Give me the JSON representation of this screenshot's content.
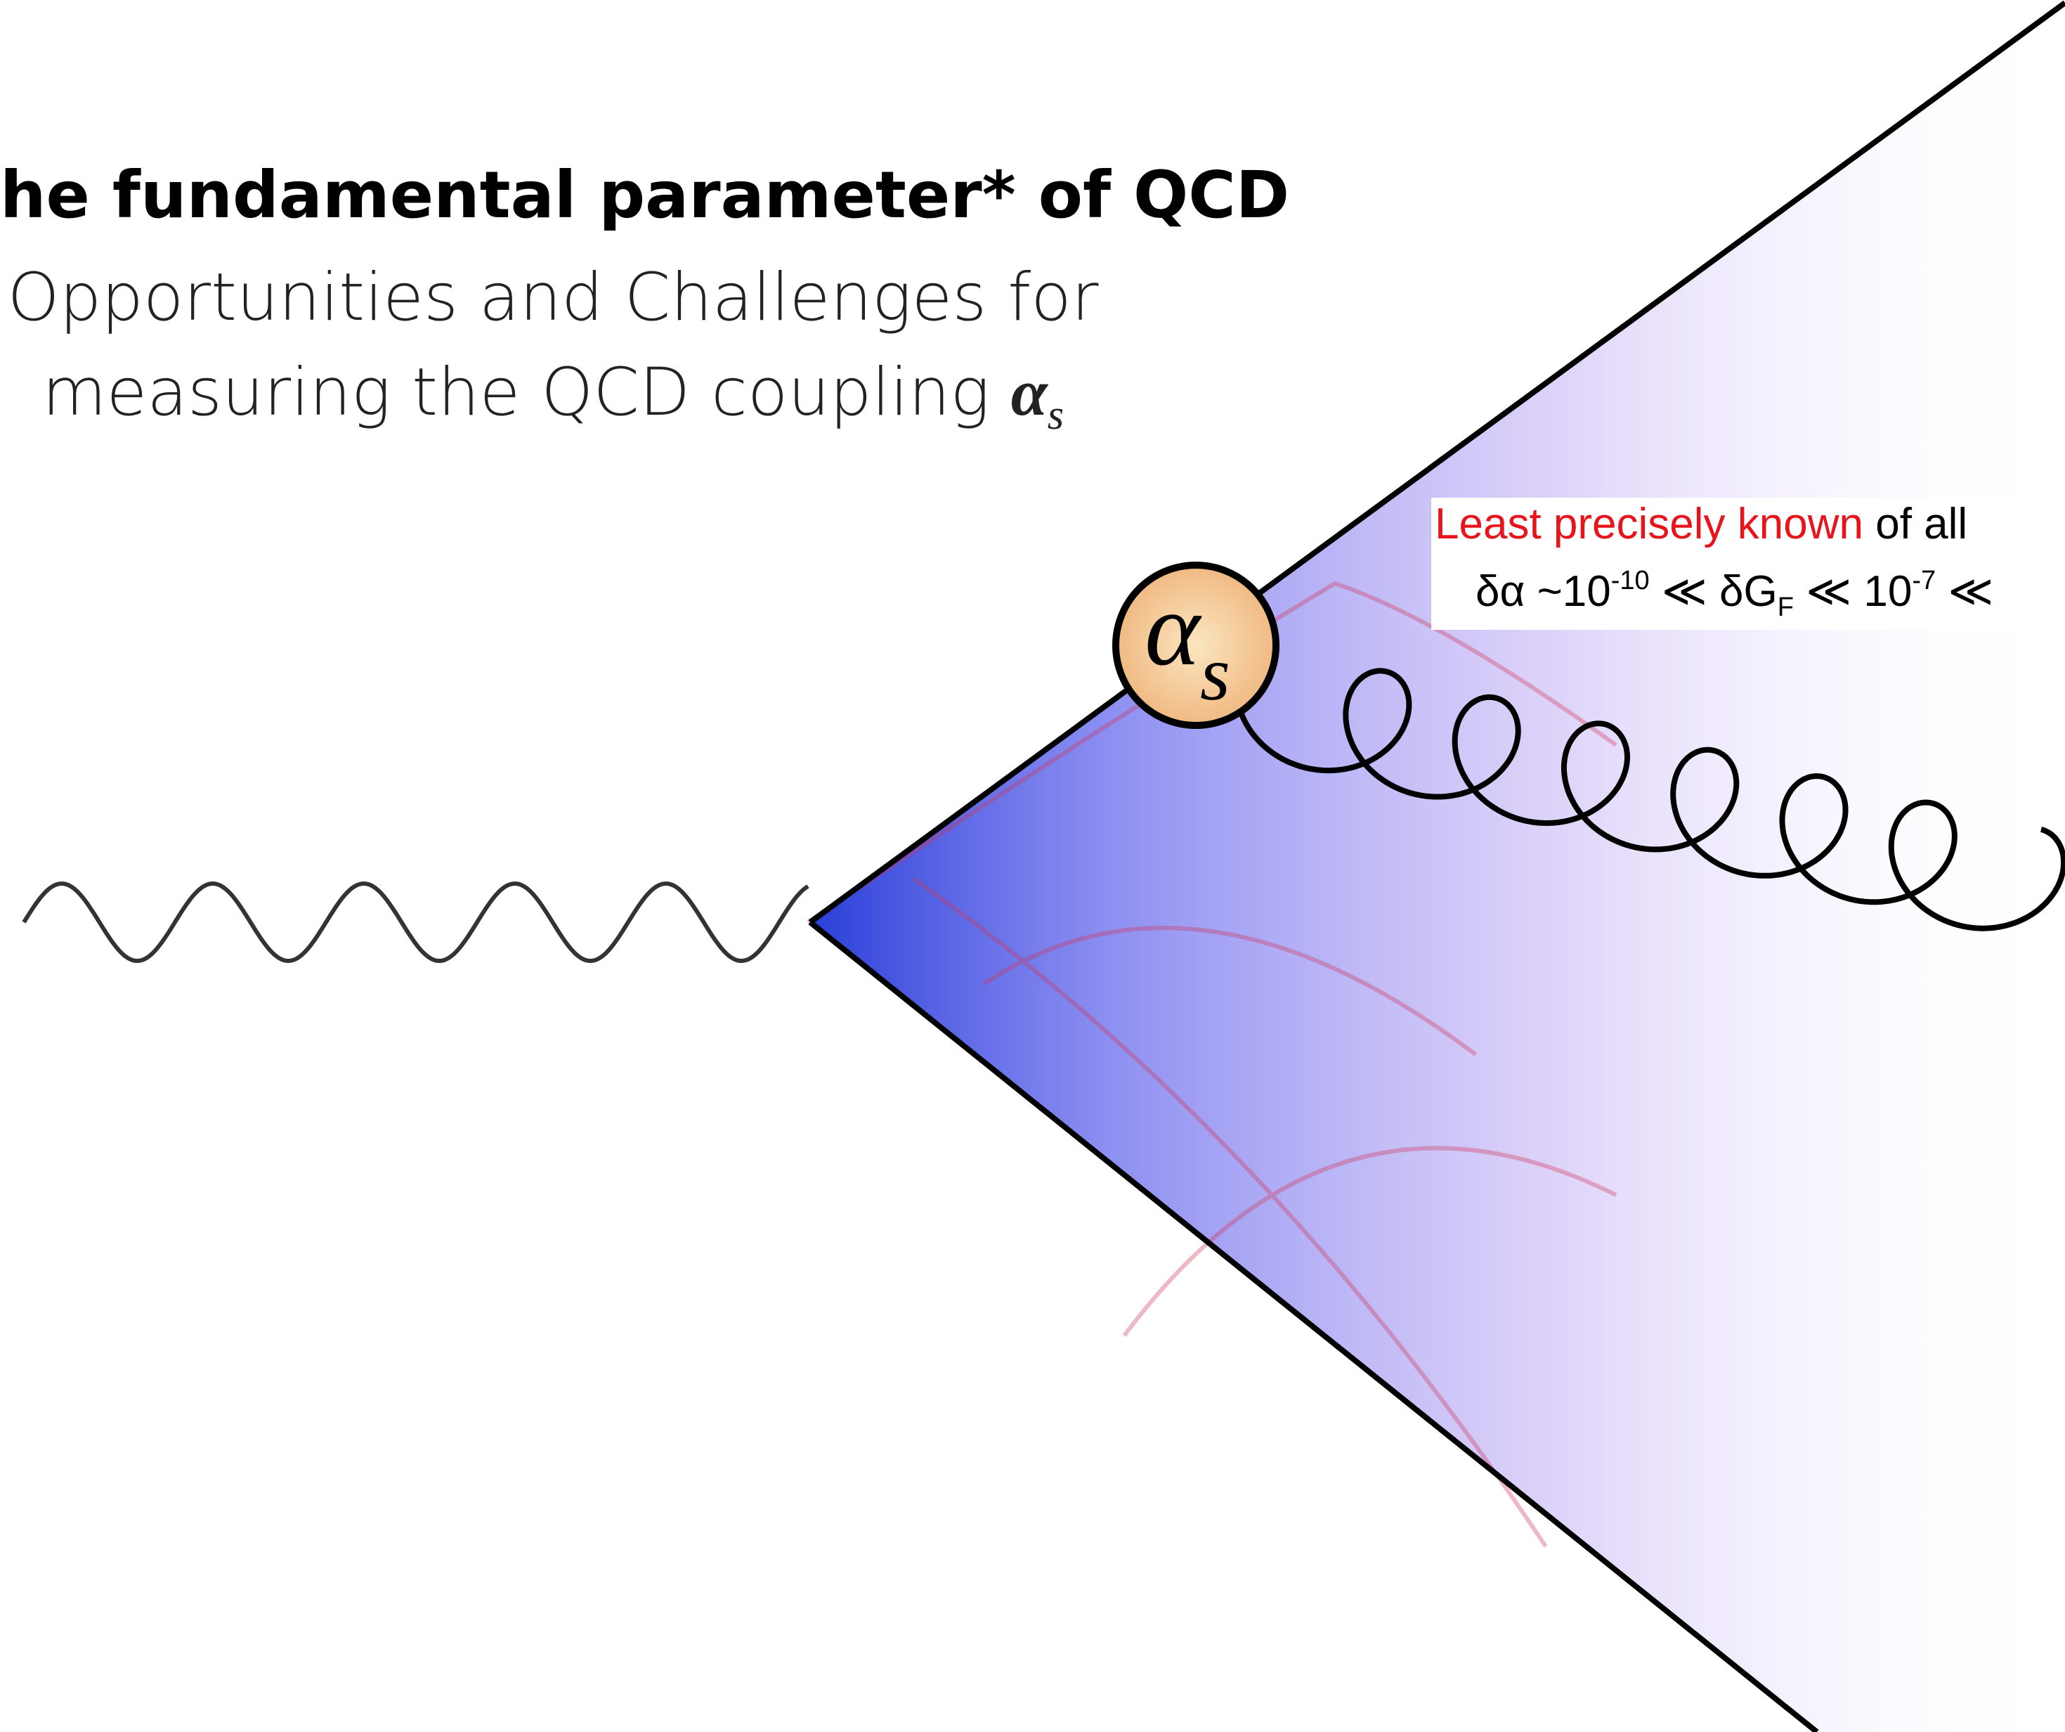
{
  "title": "he fundamental parameter* of QCD",
  "subtitle": {
    "line1": "Opportunities and Challenges for",
    "line2": "measuring the QCD coupling ",
    "symbol": "α",
    "symbol_sub": "s"
  },
  "vertex_label": {
    "symbol": "α",
    "sub": "s"
  },
  "annotation": {
    "line1": {
      "highlight": "Least precisely known",
      "rest": " of all"
    },
    "line2": {
      "a": "δα ~10",
      "a_sup": "-10",
      "b": " ≪ δG",
      "b_sub": "F",
      "c": " ≪  10",
      "c_sup": "-7",
      "d": " ≪"
    }
  }
}
